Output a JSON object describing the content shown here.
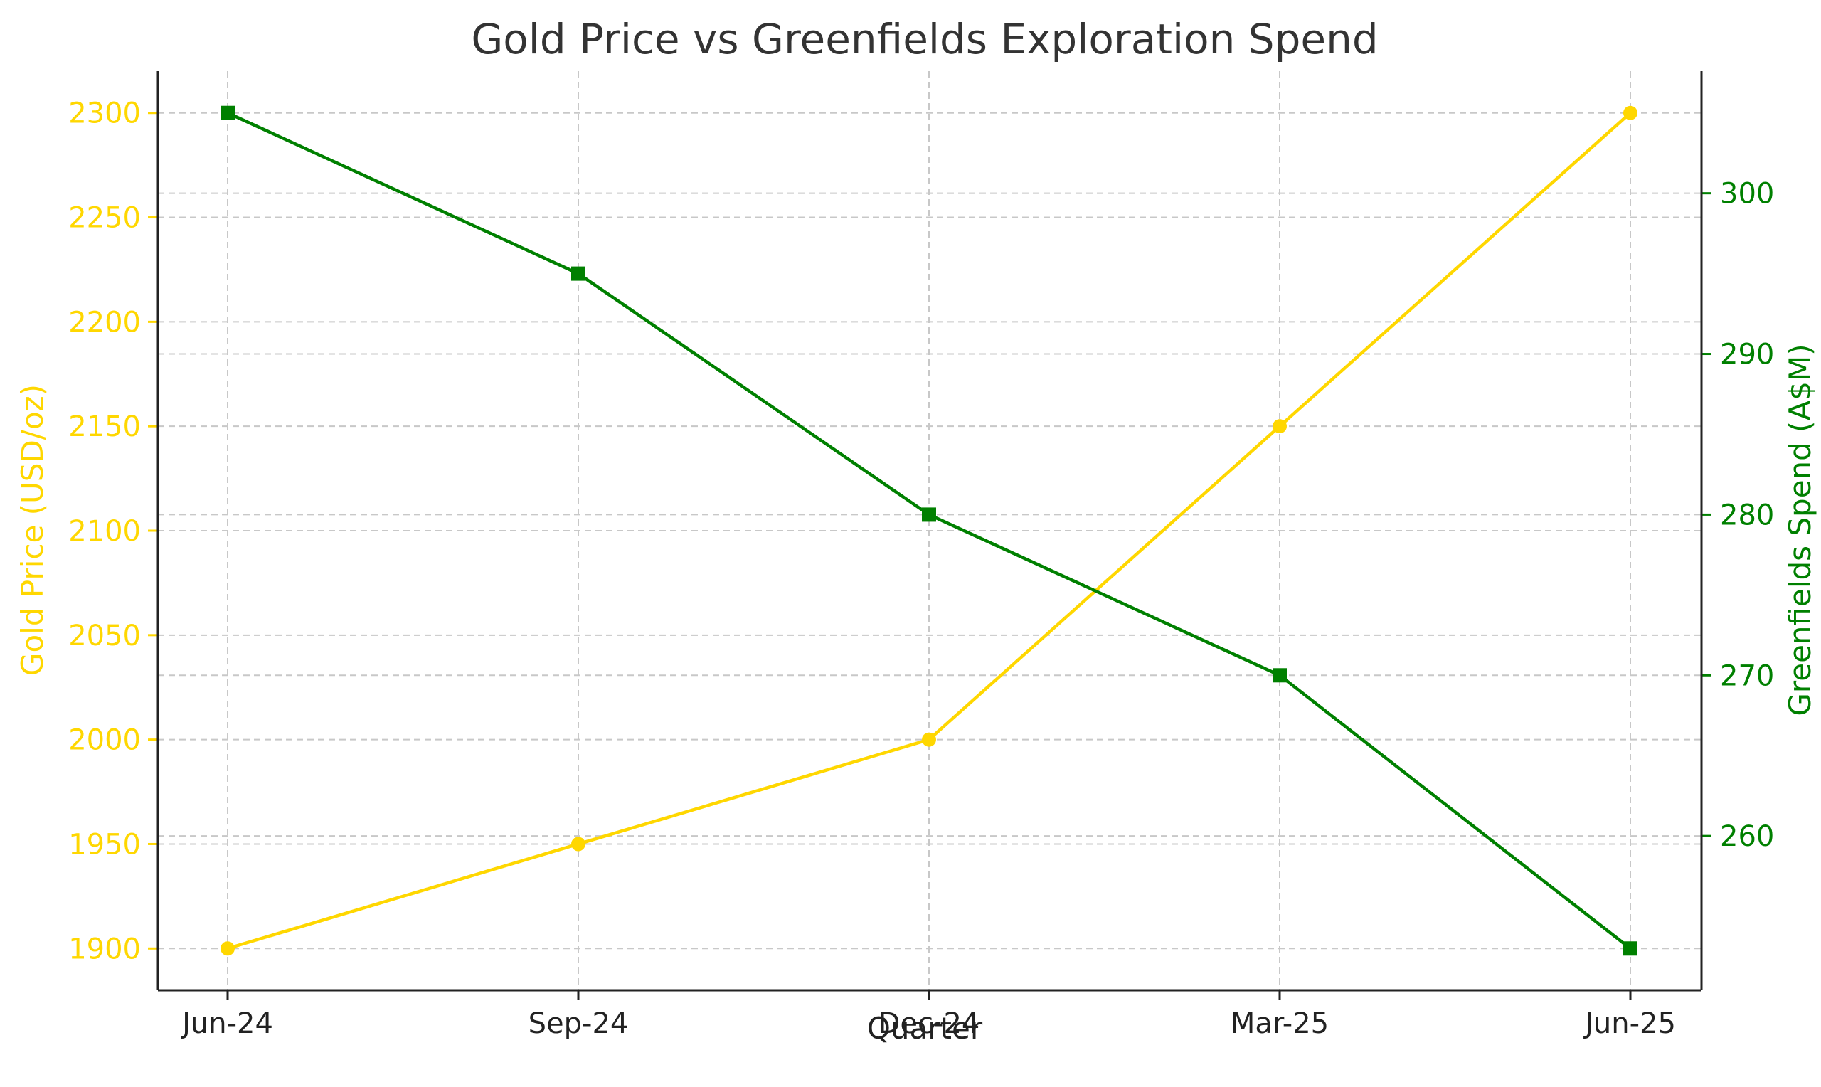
{
  "chart_data": {
    "type": "line",
    "title": "Gold Price vs Greenfields Exploration Spend",
    "xlabel": "Quarter",
    "categories": [
      "Jun-24",
      "Sep-24",
      "Dec-24",
      "Mar-25",
      "Jun-25"
    ],
    "grid": true,
    "series": [
      {
        "axis": "left",
        "values": [
          1900,
          1950,
          2000,
          2150,
          2300
        ],
        "color": "#FFD700",
        "marker": "circle"
      },
      {
        "axis": "right",
        "values": [
          305,
          295,
          280,
          270,
          253
        ],
        "color": "#008000",
        "marker": "square"
      }
    ],
    "y_left": {
      "label": "Gold Price (USD/oz)",
      "ticks": [
        1900,
        1950,
        2000,
        2050,
        2100,
        2150,
        2200,
        2250,
        2300
      ],
      "ylim": [
        1880,
        2320
      ],
      "color": "#FFD700"
    },
    "y_right": {
      "label": "Greenfields Spend (A$M)",
      "ticks": [
        260,
        270,
        280,
        290,
        300
      ],
      "ylim": [
        250.4,
        307.6
      ],
      "color": "#008000"
    }
  }
}
